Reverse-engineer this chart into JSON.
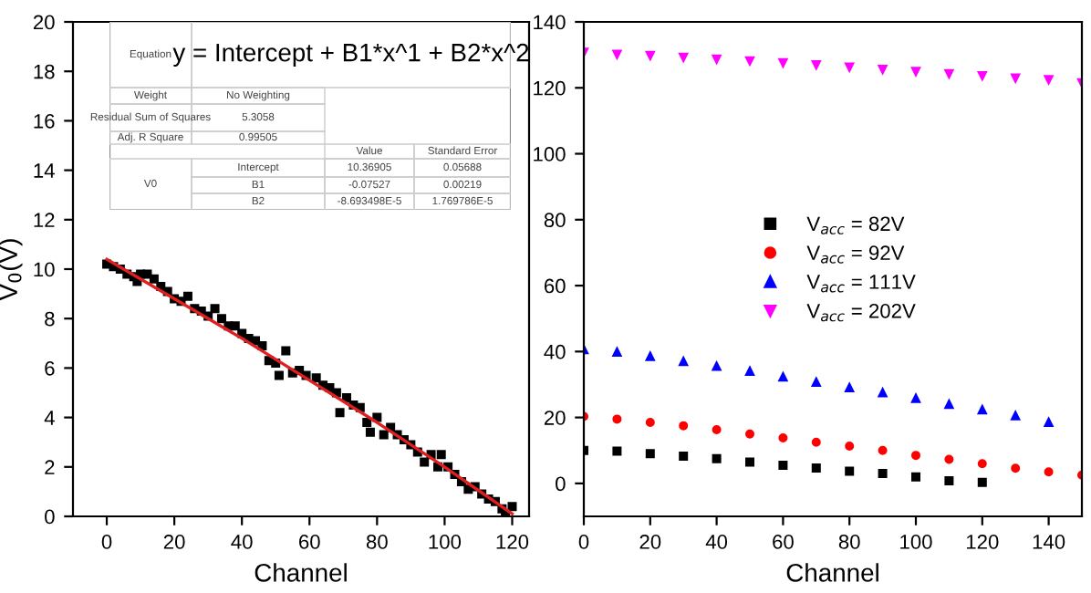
{
  "chart_data": [
    {
      "type": "scatter",
      "ylabel": "V$_{0}$(V)",
      "xlabel": "Channel",
      "xlim": [
        -10,
        125
      ],
      "ylim": [
        0,
        20
      ],
      "xticks": [
        0,
        20,
        40,
        60,
        80,
        100,
        120
      ],
      "yticks": [
        0,
        2,
        4,
        6,
        8,
        10,
        12,
        14,
        16,
        18,
        20
      ],
      "grid": false,
      "legend": false,
      "annotations": [
        "Equation",
        "y = Intercept + B1*x^1 + B2*x^2",
        "Weight",
        "No Weighting",
        "Residual Sum of Squares",
        "5.3058",
        "Adj. R Square",
        "0.99505",
        "Value",
        "Standard Error",
        "V0",
        "Intercept",
        "10.36905",
        "0.05688",
        "B1",
        "-0.07527",
        "0.00219",
        "B2",
        "-8.693498E-5",
        "1.769786E-5"
      ],
      "series": [
        {
          "type": "scatter",
          "color": "#000000",
          "marker": "square",
          "x": [
            0,
            2,
            4,
            6,
            8,
            9,
            10,
            12,
            14,
            16,
            18,
            20,
            22,
            24,
            26,
            28,
            30,
            32,
            34,
            36,
            38,
            40,
            42,
            44,
            46,
            48,
            50,
            51,
            53,
            55,
            57,
            59,
            62,
            64,
            66,
            68,
            69,
            71,
            73,
            75,
            77,
            78,
            80,
            82,
            84,
            86,
            88,
            90,
            92,
            94,
            96,
            98,
            99,
            101,
            103,
            105,
            107,
            109,
            111,
            113,
            115,
            117,
            118,
            120
          ],
          "values": [
            10.2,
            10.1,
            10.0,
            9.8,
            9.7,
            9.5,
            9.8,
            9.8,
            9.6,
            9.3,
            9.1,
            8.8,
            8.7,
            8.9,
            8.4,
            8.3,
            8.1,
            8.4,
            8.0,
            7.7,
            7.7,
            7.4,
            7.2,
            7.1,
            6.9,
            6.3,
            6.2,
            5.7,
            6.7,
            5.8,
            5.9,
            5.7,
            5.6,
            5.3,
            5.2,
            5.0,
            4.2,
            4.8,
            4.5,
            4.4,
            3.8,
            3.4,
            4.0,
            3.3,
            3.6,
            3.3,
            3.1,
            2.9,
            2.6,
            2.2,
            2.5,
            2.0,
            2.5,
            2.0,
            1.7,
            1.4,
            1.1,
            1.2,
            0.9,
            0.7,
            0.6,
            0.3,
            0.1,
            0.4
          ]
        },
        {
          "type": "line",
          "color": "#e02020",
          "marker": "none",
          "line_style": "solid",
          "x": [
            0,
            20,
            40,
            60,
            80,
            100,
            120
          ],
          "values": [
            10.4,
            8.8,
            7.2,
            5.5,
            3.8,
            2.0,
            0.1
          ]
        }
      ]
    },
    {
      "type": "scatter",
      "xlabel": "Channel",
      "xlim": [
        0,
        150
      ],
      "ylim": [
        -10,
        140
      ],
      "xticks": [
        0,
        20,
        40,
        60,
        80,
        100,
        120,
        140
      ],
      "yticks": [
        0,
        20,
        40,
        60,
        80,
        100,
        120,
        140
      ],
      "grid": false,
      "legend": "center",
      "series": [
        {
          "name": "V$_{acc}$ = 82V",
          "color": "#000000",
          "marker": "square",
          "x": [
            0,
            10,
            20,
            30,
            40,
            50,
            60,
            70,
            80,
            90,
            100,
            110,
            120
          ],
          "values": [
            10,
            9.8,
            9,
            8.3,
            7.5,
            6.5,
            5.5,
            4.7,
            3.7,
            3,
            2,
            0.8,
            0.3
          ]
        },
        {
          "name": "V$_{acc}$ = 92V",
          "color": "#ff0000",
          "marker": "circle",
          "x": [
            0,
            10,
            20,
            30,
            40,
            50,
            60,
            70,
            80,
            90,
            100,
            110,
            120,
            130,
            140,
            150
          ],
          "values": [
            20.3,
            19.5,
            18.5,
            17.5,
            16.3,
            15,
            13.8,
            12.5,
            11.3,
            10,
            8.5,
            7.3,
            6,
            4.6,
            3.5,
            2.5
          ]
        },
        {
          "name": "V$_{acc}$ = 111V",
          "color": "#0000ff",
          "marker": "triangle",
          "x": [
            0,
            10,
            20,
            30,
            40,
            50,
            60,
            70,
            80,
            90,
            100,
            110,
            120,
            130,
            140
          ],
          "values": [
            40.6,
            39.8,
            38.5,
            37,
            35.5,
            34,
            32.3,
            30.7,
            29,
            27.5,
            25.8,
            24,
            22.3,
            20.5,
            18.5
          ]
        },
        {
          "name": "V$_{acc}$ = 202V",
          "color": "#ff00ff",
          "marker": "triangle_down",
          "x": [
            0,
            10,
            20,
            30,
            40,
            50,
            60,
            70,
            80,
            90,
            100,
            110,
            120,
            130,
            140,
            150
          ],
          "values": [
            130.8,
            130.2,
            129.8,
            129.3,
            128.7,
            128.2,
            127.6,
            127,
            126.3,
            125.6,
            125,
            124.3,
            123.7,
            123,
            122.5,
            121.5
          ]
        }
      ]
    }
  ]
}
